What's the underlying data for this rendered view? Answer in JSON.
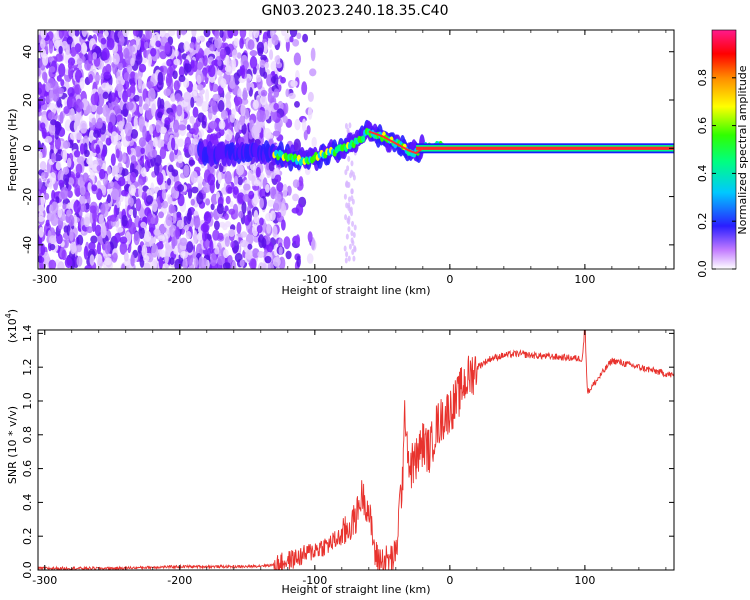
{
  "title": "GN03.2023.240.18.35.C40",
  "chart_data": [
    {
      "type": "heatmap",
      "xlabel": "Height of straight line (km)",
      "ylabel": "Frequency (Hz)",
      "xlim": [
        -305,
        166
      ],
      "ylim": [
        -50,
        49
      ],
      "xticks": [
        -300,
        -200,
        -100,
        0,
        100
      ],
      "yticks": [
        -40,
        -20,
        0,
        20,
        40
      ],
      "xtick_labels": [
        "-300",
        "-200",
        "-100",
        "0",
        "100"
      ],
      "ytick_labels": [
        "-40",
        "-20",
        "0",
        "20",
        "40"
      ],
      "colorbar": {
        "label": "Normalized spectral amplitude",
        "range": [
          0,
          1
        ],
        "ticks": [
          "0.0",
          "0.2",
          "0.4",
          "0.6",
          "0.8"
        ],
        "tick_values": [
          0.0,
          0.2,
          0.4,
          0.6,
          0.8
        ],
        "colors": [
          "#ffffff",
          "#9b30ff",
          "#2020ff",
          "#00e0ff",
          "#00ff40",
          "#ffff00",
          "#ff7f00",
          "#ff0000",
          "#ff1a8c"
        ]
      },
      "ridge": {
        "name": "dominant frequency track",
        "x": [
          -180,
          -160,
          -140,
          -130,
          -120,
          -110,
          -100,
          -90,
          -80,
          -70,
          -60,
          -50,
          -40,
          -30,
          -25,
          -20,
          -10,
          0,
          50,
          100,
          166
        ],
        "y": [
          -2,
          -3,
          -1,
          -2,
          -4,
          -5,
          -4,
          -2,
          0,
          2,
          7,
          5,
          2,
          -1,
          -2,
          0,
          1,
          0,
          0,
          0,
          0
        ],
        "noise_region_x": [
          -305,
          -125
        ]
      }
    },
    {
      "type": "line",
      "xlabel": "Height of straight line (km)",
      "ylabel": "SNR (10 * v/v)",
      "yscale_label": "(x10",
      "yscale_exp": "4",
      "yscale_close": ")",
      "xlim": [
        -305,
        166
      ],
      "ylim": [
        0,
        1.42
      ],
      "xticks": [
        -300,
        -200,
        -100,
        0,
        100
      ],
      "yticks": [
        0.0,
        0.2,
        0.4,
        0.6,
        0.8,
        1.0,
        1.2,
        1.4
      ],
      "xtick_labels": [
        "-300",
        "-200",
        "-100",
        "0",
        "100"
      ],
      "ytick_labels": [
        "0.0",
        "0.2",
        "0.4",
        "0.6",
        "0.8",
        "1.0",
        "1.2",
        "1.4"
      ],
      "line_color": "#e8322d",
      "series": [
        {
          "x": [
            -305,
            -250,
            -200,
            -150,
            -130,
            -110,
            -100,
            -90,
            -80,
            -70,
            -65,
            -60,
            -55,
            -50,
            -45,
            -40,
            -38,
            -35,
            -33,
            -30,
            -25,
            -20,
            -15,
            -10,
            -5,
            0,
            5,
            10,
            20,
            30,
            40,
            50,
            60,
            80,
            98,
            100,
            102,
            120,
            140,
            166
          ],
          "y": [
            0.01,
            0.01,
            0.02,
            0.02,
            0.03,
            0.08,
            0.12,
            0.15,
            0.2,
            0.3,
            0.45,
            0.35,
            0.08,
            0.05,
            0.06,
            0.08,
            0.3,
            0.55,
            0.95,
            0.6,
            0.65,
            0.75,
            0.7,
            0.85,
            0.9,
            0.95,
            1.0,
            1.1,
            1.2,
            1.25,
            1.27,
            1.28,
            1.27,
            1.26,
            1.25,
            1.42,
            1.05,
            1.24,
            1.2,
            1.15
          ]
        }
      ]
    }
  ]
}
